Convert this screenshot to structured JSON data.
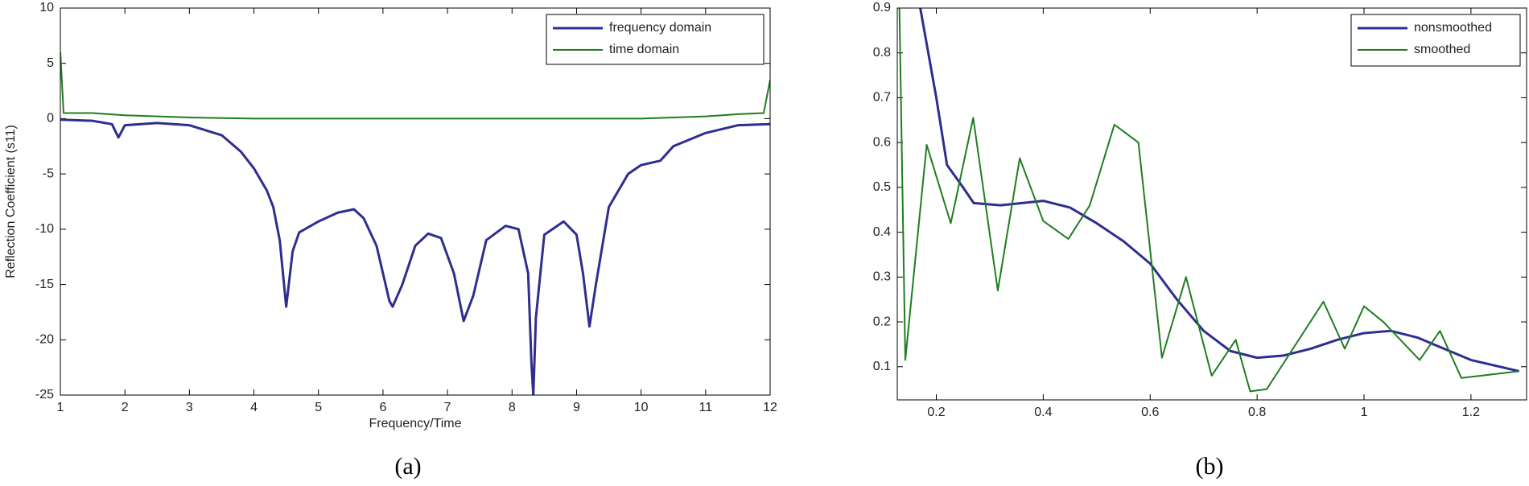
{
  "chart_data": [
    {
      "type": "line",
      "label": "(a)",
      "x_label": "Frequency/Time",
      "y_label": "Reflection Coefficient (s11)",
      "xlim": [
        1,
        12
      ],
      "ylim": [
        -25,
        10
      ],
      "xticks": [
        1,
        2,
        3,
        4,
        5,
        6,
        7,
        8,
        9,
        10,
        11,
        12
      ],
      "yticks": [
        -25,
        -20,
        -15,
        -10,
        -5,
        0,
        5,
        10
      ],
      "legend": "upper right",
      "series": [
        {
          "name": "frequency domain",
          "color": "#2e2e8f",
          "width": 3,
          "x": [
            1,
            1.5,
            1.8,
            1.9,
            2,
            2.5,
            3,
            3.5,
            3.8,
            4,
            4.2,
            4.3,
            4.4,
            4.5,
            4.6,
            4.7,
            5,
            5.3,
            5.55,
            5.7,
            5.9,
            6.1,
            6.15,
            6.3,
            6.5,
            6.7,
            6.9,
            7.1,
            7.25,
            7.4,
            7.6,
            7.9,
            8.1,
            8.25,
            8.3,
            8.33,
            8.37,
            8.5,
            8.8,
            9,
            9.1,
            9.2,
            9.3,
            9.5,
            9.8,
            10,
            10.3,
            10.5,
            11,
            11.5,
            12
          ],
          "values": [
            -0.1,
            -0.2,
            -0.5,
            -1.7,
            -0.6,
            -0.4,
            -0.6,
            -1.5,
            -3,
            -4.5,
            -6.5,
            -8,
            -11,
            -17,
            -12,
            -10.3,
            -9.3,
            -8.5,
            -8.2,
            -9,
            -11.5,
            -16.5,
            -17,
            -15,
            -11.5,
            -10.4,
            -10.8,
            -14,
            -18.3,
            -16,
            -11,
            -9.7,
            -10,
            -14,
            -22,
            -25,
            -18,
            -10.5,
            -9.3,
            -10.5,
            -14,
            -18.8,
            -15,
            -8,
            -5,
            -4.2,
            -3.8,
            -2.5,
            -1.3,
            -0.6,
            -0.5
          ]
        },
        {
          "name": "time domain",
          "color": "#1f7d1f",
          "width": 2,
          "x": [
            1,
            1.05,
            1.5,
            2,
            3,
            4,
            6,
            8,
            10,
            11,
            11.5,
            11.9,
            12
          ],
          "values": [
            6,
            0.5,
            0.5,
            0.3,
            0.1,
            0,
            0,
            0,
            0,
            0.2,
            0.4,
            0.5,
            3.5
          ]
        }
      ]
    },
    {
      "type": "line",
      "label": "(b)",
      "xlim": [
        0.127,
        1.304
      ],
      "ylim": [
        0.026,
        0.9
      ],
      "xticks": [
        0.2,
        0.4,
        0.6,
        0.8,
        1,
        1.2
      ],
      "yticks": [
        0.1,
        0.2,
        0.3,
        0.4,
        0.5,
        0.6,
        0.7,
        0.8,
        0.9
      ],
      "legend": "upper right",
      "series": [
        {
          "name": "nonsmoothed",
          "color": "#2e2e8f",
          "width": 3,
          "x": [
            0.17,
            0.2,
            0.22,
            0.25,
            0.27,
            0.32,
            0.4,
            0.45,
            0.5,
            0.55,
            0.6,
            0.65,
            0.7,
            0.75,
            0.8,
            0.85,
            0.9,
            0.95,
            1,
            1.05,
            1.1,
            1.15,
            1.2,
            1.29
          ],
          "values": [
            0.9,
            0.7,
            0.55,
            0.5,
            0.465,
            0.46,
            0.47,
            0.455,
            0.42,
            0.38,
            0.33,
            0.25,
            0.18,
            0.135,
            0.12,
            0.125,
            0.14,
            0.16,
            0.175,
            0.18,
            0.165,
            0.14,
            0.115,
            0.09
          ]
        },
        {
          "name": "smoothed",
          "color": "#1f7d1f",
          "width": 2,
          "x": [
            0.131,
            0.142,
            0.182,
            0.227,
            0.269,
            0.315,
            0.356,
            0.4,
            0.447,
            0.487,
            0.533,
            0.578,
            0.622,
            0.667,
            0.715,
            0.76,
            0.787,
            0.818,
            0.924,
            0.964,
            1,
            1.036,
            1.104,
            1.142,
            1.182,
            1.29
          ],
          "values": [
            0.9,
            0.115,
            0.595,
            0.42,
            0.655,
            0.27,
            0.565,
            0.425,
            0.385,
            0.46,
            0.64,
            0.6,
            0.12,
            0.3,
            0.08,
            0.16,
            0.045,
            0.05,
            0.245,
            0.14,
            0.235,
            0.2,
            0.115,
            0.18,
            0.075,
            0.09
          ]
        }
      ]
    }
  ]
}
